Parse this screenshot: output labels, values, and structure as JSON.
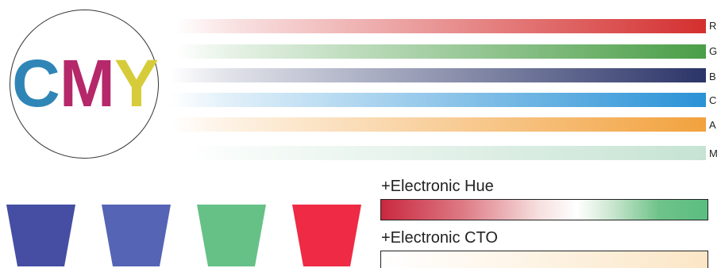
{
  "logo": {
    "letters": [
      "C",
      "M",
      "Y"
    ],
    "colors": {
      "c": "#2f86b6",
      "m": "#b5286a",
      "y": "#d6cc3a"
    }
  },
  "bars": [
    {
      "label": "R",
      "color": "#d42f2f"
    },
    {
      "label": "G",
      "color": "#4a9e47"
    },
    {
      "label": "B",
      "color": "#2b3468"
    },
    {
      "label": "C",
      "color": "#2a92d6"
    },
    {
      "label": "A",
      "color": "#f2a23e"
    },
    {
      "label": "M",
      "color": "#c6e3d3"
    }
  ],
  "wheel_colors": [
    {
      "name": "deep-blue",
      "color": "#454ea3"
    },
    {
      "name": "light-blue",
      "color": "#5564b4"
    },
    {
      "name": "green",
      "color": "#66c187"
    },
    {
      "name": "red",
      "color": "#ee2a44"
    }
  ],
  "features": {
    "hue_title": "+Electronic Hue",
    "cto_title": "+Electronic CTO"
  }
}
